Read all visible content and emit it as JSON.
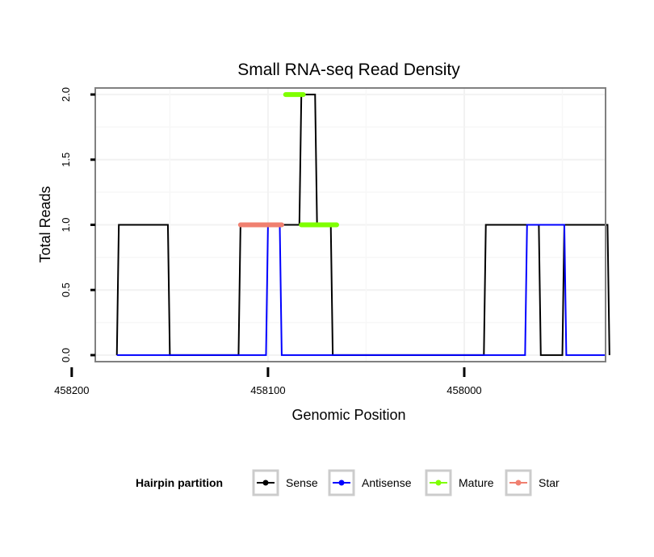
{
  "chart_data": {
    "type": "line",
    "title": "Small RNA-seq Read Density",
    "xlabel": "Genomic Position",
    "ylabel": "Total Reads",
    "xlim": [
      458188,
      457928
    ],
    "ylim": [
      -0.05,
      2.05
    ],
    "x_reversed": true,
    "grid": true,
    "xticks": [
      458200,
      458100,
      458000
    ],
    "xtick_labels": [
      "458200",
      "458100",
      "458000"
    ],
    "yticks": [
      0.0,
      0.5,
      1.0,
      1.5,
      2.0
    ],
    "ytick_labels": [
      "0.0",
      "0.5",
      "1.0",
      "1.5",
      "2.0"
    ],
    "legend": {
      "title": "Hairpin partition",
      "position": "bottom",
      "entries": [
        "Sense",
        "Antisense",
        "Mature",
        "Star"
      ]
    },
    "series": [
      {
        "name": "Sense",
        "color": "#000000",
        "x": [
          458177,
          458176,
          458151,
          458150,
          458115,
          458114,
          458093,
          458092,
          458084,
          458083,
          458076,
          458075,
          458068,
          458067,
          458050,
          458049,
          457990,
          457989,
          457962,
          457961,
          457950,
          457949,
          457927,
          457926
        ],
        "y": [
          0,
          1,
          1,
          0,
          0,
          1,
          1,
          1,
          1,
          2,
          2,
          1,
          1,
          0,
          0,
          0,
          0,
          1,
          1,
          0,
          0,
          1,
          1,
          0
        ]
      },
      {
        "name": "Antisense",
        "color": "#0000ff",
        "x": [
          458177,
          458101,
          458100,
          458094,
          458093,
          457969,
          457968,
          457949,
          457948,
          457928
        ],
        "y": [
          0,
          0,
          1,
          1,
          0,
          0,
          1,
          1,
          0,
          0
        ]
      },
      {
        "name": "Mature",
        "color": "#7fff00",
        "segments": [
          {
            "x": [
              458091,
              458082
            ],
            "y": [
              2,
              2
            ]
          },
          {
            "x": [
              458083,
              458065
            ],
            "y": [
              1,
              1
            ]
          }
        ]
      },
      {
        "name": "Star",
        "color": "#f08070",
        "segments": [
          {
            "x": [
              458114,
              458093
            ],
            "y": [
              1,
              1
            ]
          }
        ]
      }
    ]
  }
}
